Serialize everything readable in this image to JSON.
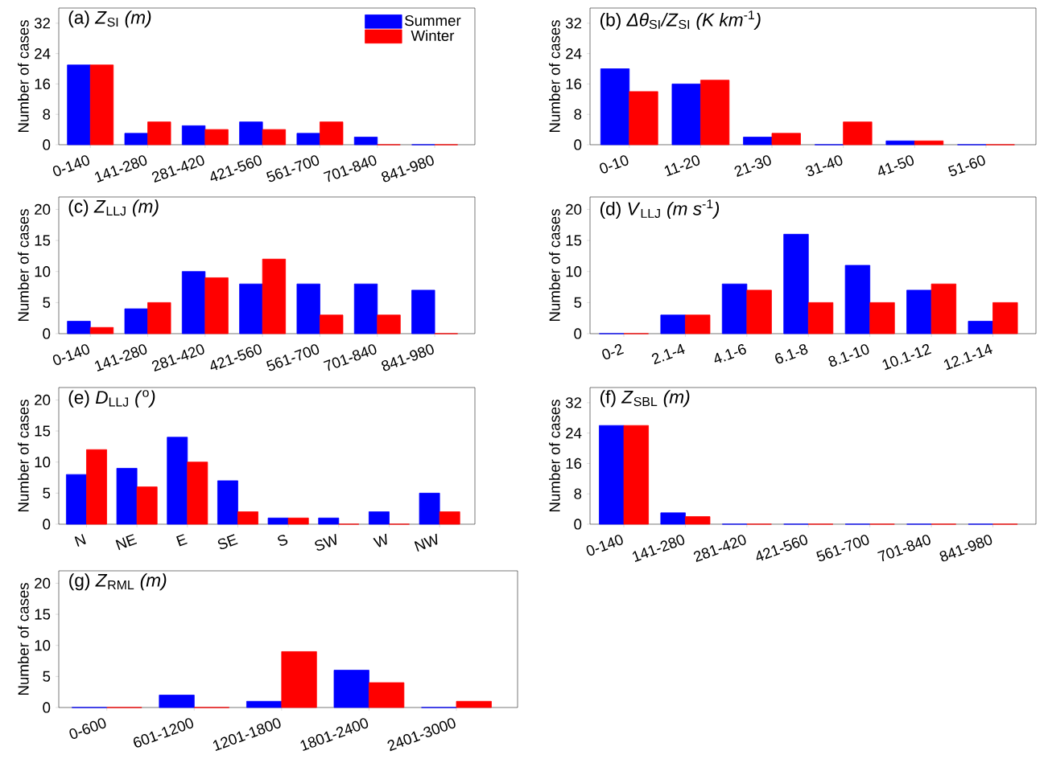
{
  "chart_data": [
    {
      "type": "bar",
      "title": "(a) *Z*$_{SI}$ *(m)*",
      "ylabel": "Number of cases",
      "categories": [
        "0-140",
        "141-280",
        "281-420",
        "421-560",
        "561-700",
        "701-840",
        "841-980"
      ],
      "series": [
        {
          "name": "Summer",
          "color": "#0000ff",
          "values": [
            21,
            3,
            5,
            6,
            3,
            2,
            0
          ]
        },
        {
          "name": "Winter",
          "color": "#ff0000",
          "values": [
            21,
            6,
            4,
            4,
            6,
            0,
            0
          ]
        }
      ],
      "ylim": [
        0,
        36
      ],
      "yticks": [
        0,
        8,
        16,
        24,
        32
      ],
      "legend": "top right"
    },
    {
      "type": "bar",
      "title": "(b) *Δθ*$_{SI}$*/Z*$_{SI}$ *(K km*$^{-1}$*)*",
      "ylabel": "Number of cases",
      "categories": [
        "0-10",
        "11-20",
        "21-30",
        "31-40",
        "41-50",
        "51-60"
      ],
      "series": [
        {
          "color": "#0000ff",
          "values": [
            20,
            16,
            2,
            0,
            1,
            0
          ]
        },
        {
          "color": "#ff0000",
          "values": [
            14,
            17,
            3,
            6,
            1,
            0
          ]
        }
      ],
      "ylim": [
        0,
        36
      ],
      "yticks": [
        0,
        8,
        16,
        24,
        32
      ]
    },
    {
      "type": "bar",
      "title": "(c) *Z*$_{LLJ}$ *(m)*",
      "ylabel": "Number of cases",
      "categories": [
        "0-140",
        "141-280",
        "281-420",
        "421-560",
        "561-700",
        "701-840",
        "841-980"
      ],
      "series": [
        {
          "color": "#0000ff",
          "values": [
            2,
            4,
            10,
            8,
            8,
            8,
            7
          ]
        },
        {
          "color": "#ff0000",
          "values": [
            1,
            5,
            9,
            12,
            3,
            3,
            0
          ]
        }
      ],
      "ylim": [
        0,
        22
      ],
      "yticks": [
        0,
        5,
        10,
        15,
        20
      ]
    },
    {
      "type": "bar",
      "title": "(d) *V*$_{LLJ}$ *(m s*$^{-1}$*)*",
      "ylabel": "Number of cases",
      "categories": [
        "0-2",
        "2.1-4",
        "4.1-6",
        "6.1-8",
        "8.1-10",
        "10.1-12",
        "12.1-14"
      ],
      "series": [
        {
          "color": "#0000ff",
          "values": [
            0,
            3,
            8,
            16,
            11,
            7,
            2
          ]
        },
        {
          "color": "#ff0000",
          "values": [
            0,
            3,
            7,
            5,
            5,
            8,
            5
          ]
        }
      ],
      "ylim": [
        0,
        22
      ],
      "yticks": [
        0,
        5,
        10,
        15,
        20
      ]
    },
    {
      "type": "bar",
      "title": "(e) *D*$_{LLJ}$ *(*$^{o}$*)*",
      "ylabel": "Number of cases",
      "categories": [
        "N",
        "NE",
        "E",
        "SE",
        "S",
        "SW",
        "W",
        "NW"
      ],
      "series": [
        {
          "color": "#0000ff",
          "values": [
            8,
            9,
            14,
            7,
            1,
            1,
            2,
            5
          ]
        },
        {
          "color": "#ff0000",
          "values": [
            12,
            6,
            10,
            2,
            1,
            0,
            0,
            2
          ]
        }
      ],
      "ylim": [
        0,
        22
      ],
      "yticks": [
        0,
        5,
        10,
        15,
        20
      ]
    },
    {
      "type": "bar",
      "title": "(f) *Z*$_{SBL}$ *(m)*",
      "ylabel": "Number of cases",
      "categories": [
        "0-140",
        "141-280",
        "281-420",
        "421-560",
        "561-700",
        "701-840",
        "841-980"
      ],
      "series": [
        {
          "color": "#0000ff",
          "values": [
            26,
            3,
            0,
            0,
            0,
            0,
            0
          ]
        },
        {
          "color": "#ff0000",
          "values": [
            26,
            2,
            0,
            0,
            0,
            0,
            0
          ]
        }
      ],
      "ylim": [
        0,
        36
      ],
      "yticks": [
        0,
        8,
        16,
        24,
        32
      ]
    },
    {
      "type": "bar",
      "title": "(g) *Z*$_{RML}$ *(m)*",
      "ylabel": "Number of cases",
      "categories": [
        "0-600",
        "601-1200",
        "1201-1800",
        "1801-2400",
        "2401-3000"
      ],
      "series": [
        {
          "color": "#0000ff",
          "values": [
            0,
            2,
            1,
            6,
            0
          ]
        },
        {
          "color": "#ff0000",
          "values": [
            0,
            0,
            9,
            4,
            1
          ]
        }
      ],
      "ylim": [
        0,
        22
      ],
      "yticks": [
        0,
        5,
        10,
        15,
        20
      ]
    }
  ]
}
